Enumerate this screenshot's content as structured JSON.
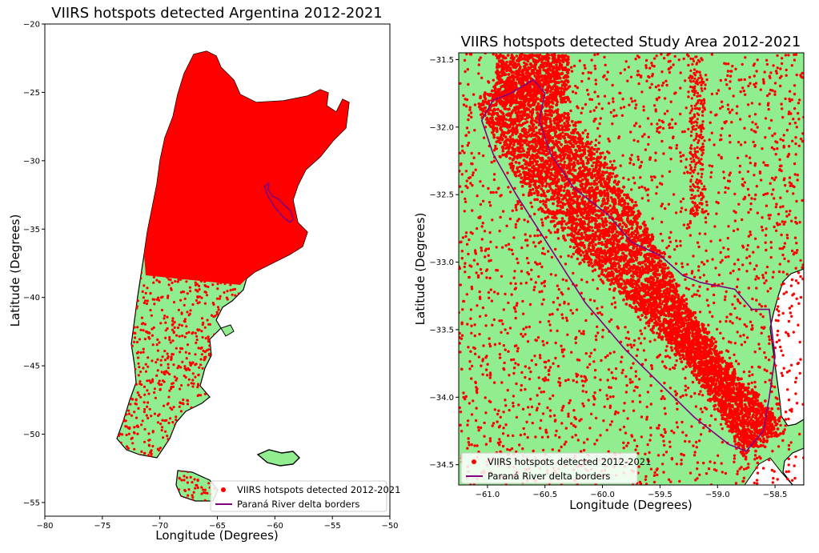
{
  "chart_data": [
    {
      "type": "map",
      "title": "VIIRS hotspots detected Argentina 2012-2021",
      "xlabel": "Longitude (Degrees)",
      "ylabel": "Latitude (Degrees)",
      "xlim": [
        -80,
        -50
      ],
      "ylim": [
        -56,
        -20
      ],
      "xticks": [
        -80,
        -75,
        -70,
        -65,
        -60,
        -55,
        -50
      ],
      "yticks": [
        -20,
        -25,
        -30,
        -35,
        -40,
        -45,
        -50,
        -55
      ],
      "legend_position": "lower-right",
      "legend": [
        {
          "label": "VIIRS hotspots detected 2012-2021",
          "color": "#ff0000",
          "marker": "dot"
        },
        {
          "label": "Paraná River delta borders",
          "color": "#800080",
          "marker": "line"
        }
      ],
      "land_color": "#90ee90",
      "series": [
        {
          "name": "Paraná River delta borders",
          "points": [
            [
              -60.5,
              -31.6
            ],
            [
              -60.6,
              -32.1
            ],
            [
              -60.2,
              -32.6
            ],
            [
              -59.7,
              -32.8
            ],
            [
              -59.2,
              -33.2
            ],
            [
              -58.6,
              -33.7
            ],
            [
              -58.4,
              -34.3
            ],
            [
              -58.7,
              -34.5
            ],
            [
              -59.3,
              -34.1
            ],
            [
              -60.0,
              -33.4
            ],
            [
              -60.6,
              -32.6
            ],
            [
              -60.9,
              -31.9
            ],
            [
              -60.5,
              -31.6
            ]
          ]
        }
      ]
    },
    {
      "type": "map",
      "title": "VIIRS hotspots detected Study Area 2012-2021",
      "xlabel": "Longitude (Degrees)",
      "ylabel": "Latitude (Degrees)",
      "xlim": [
        -61.25,
        -58.25
      ],
      "ylim": [
        -34.65,
        -31.45
      ],
      "xticks": [
        -61.0,
        -60.5,
        -60.0,
        -59.5,
        -59.0,
        -58.5
      ],
      "yticks": [
        -31.5,
        -32.0,
        -32.5,
        -33.0,
        -33.5,
        -34.0,
        -34.5
      ],
      "legend_position": "lower-left",
      "legend": [
        {
          "label": "VIIRS hotspots detected 2012-2021",
          "color": "#ff0000",
          "marker": "dot"
        },
        {
          "label": "Paraná River delta borders",
          "color": "#800080",
          "marker": "line"
        }
      ],
      "land_color": "#90ee90",
      "series": [
        {
          "name": "Paraná River delta borders",
          "points": [
            [
              -60.8,
              -31.75
            ],
            [
              -60.6,
              -31.65
            ],
            [
              -60.5,
              -31.75
            ],
            [
              -60.55,
              -31.95
            ],
            [
              -60.45,
              -32.2
            ],
            [
              -60.25,
              -32.45
            ],
            [
              -59.95,
              -32.65
            ],
            [
              -59.75,
              -32.85
            ],
            [
              -59.5,
              -32.95
            ],
            [
              -59.3,
              -33.1
            ],
            [
              -59.15,
              -33.15
            ],
            [
              -58.85,
              -33.2
            ],
            [
              -58.7,
              -33.35
            ],
            [
              -58.55,
              -33.35
            ],
            [
              -58.5,
              -33.7
            ],
            [
              -58.55,
              -34.0
            ],
            [
              -58.6,
              -34.25
            ],
            [
              -58.75,
              -34.4
            ],
            [
              -58.9,
              -34.35
            ],
            [
              -59.2,
              -34.15
            ],
            [
              -59.5,
              -33.9
            ],
            [
              -59.8,
              -33.65
            ],
            [
              -60.15,
              -33.3
            ],
            [
              -60.45,
              -32.9
            ],
            [
              -60.75,
              -32.5
            ],
            [
              -60.95,
              -32.2
            ],
            [
              -61.05,
              -31.95
            ],
            [
              -60.95,
              -31.8
            ],
            [
              -60.8,
              -31.75
            ]
          ]
        }
      ]
    }
  ]
}
